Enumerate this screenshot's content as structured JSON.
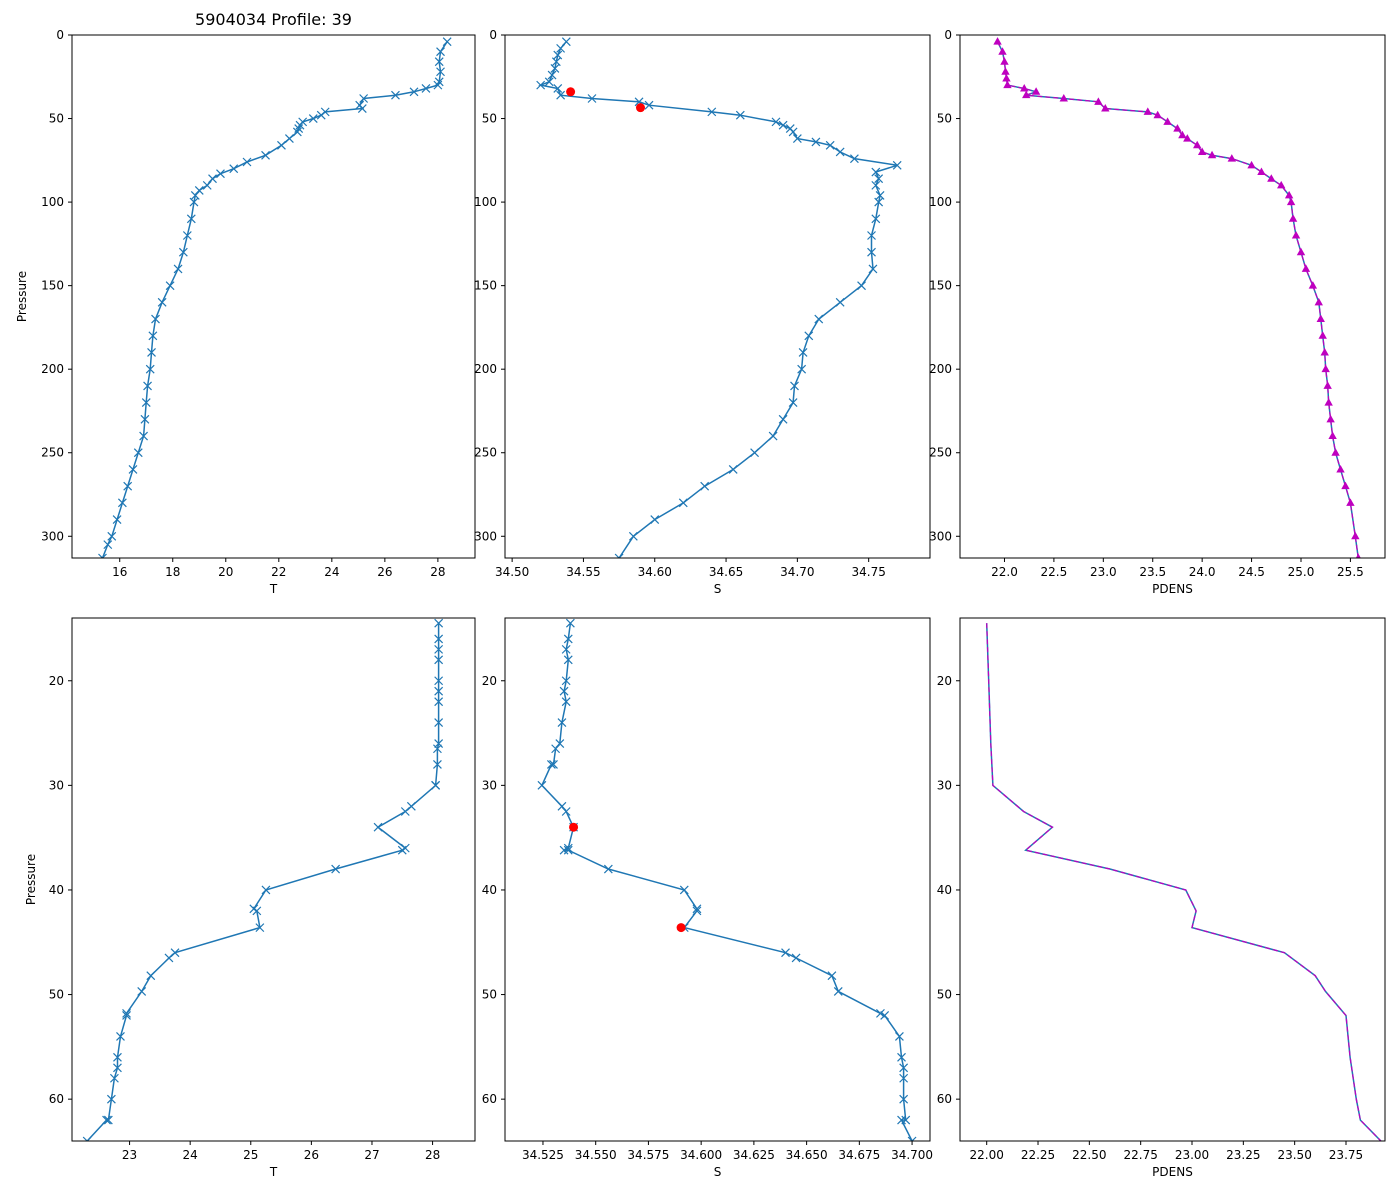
{
  "figure": {
    "title": "5904034 Profile: 39"
  },
  "colors": {
    "line": "#1f77b4",
    "density": "#bf00bf",
    "flag": "#ff0000",
    "axis": "#000000"
  },
  "chart_data": [
    {
      "type": "line",
      "panel": "top-left",
      "xlabel": "T",
      "ylabel": "Pressure",
      "xlim": [
        14.2,
        29.4
      ],
      "ylim": [
        313,
        0
      ],
      "y_inverted": true,
      "xticks": [
        16,
        18,
        20,
        22,
        24,
        26,
        28
      ],
      "yticks": [
        0,
        50,
        100,
        150,
        200,
        250,
        300
      ],
      "marker": "x",
      "series": [
        {
          "name": "T",
          "x": [
            28.35,
            28.1,
            28.05,
            28.1,
            28.05,
            28.0,
            27.55,
            27.1,
            26.4,
            25.2,
            25.05,
            25.15,
            23.75,
            23.6,
            23.3,
            22.9,
            22.8,
            22.75,
            22.7,
            22.4,
            22.1,
            21.5,
            20.8,
            20.3,
            19.8,
            19.5,
            19.3,
            19.0,
            18.85,
            18.8,
            18.7,
            18.55,
            18.4,
            18.2,
            17.9,
            17.6,
            17.35,
            17.25,
            17.2,
            17.15,
            17.05,
            17.0,
            16.95,
            16.9,
            16.7,
            16.5,
            16.3,
            16.1,
            15.9,
            15.7,
            15.55,
            15.35
          ],
          "y": [
            4,
            10,
            16,
            22,
            28,
            30,
            32,
            34,
            36,
            38,
            42,
            44,
            46,
            48,
            50,
            52,
            54,
            56,
            58,
            62,
            66,
            72,
            76,
            80,
            83,
            86,
            90,
            93,
            96,
            100,
            110,
            120,
            130,
            140,
            150,
            160,
            170,
            180,
            190,
            200,
            210,
            220,
            230,
            240,
            250,
            260,
            270,
            280,
            290,
            300,
            305,
            313
          ]
        }
      ]
    },
    {
      "type": "line",
      "panel": "top-middle",
      "xlabel": "S",
      "ylabel": "",
      "xlim": [
        34.495,
        34.793
      ],
      "ylim": [
        313,
        0
      ],
      "y_inverted": true,
      "xticks": [
        34.5,
        34.55,
        34.6,
        34.65,
        34.7,
        34.75
      ],
      "xtick_labels": [
        "34.50",
        "34.55",
        "34.60",
        "34.65",
        "34.70",
        "34.75"
      ],
      "yticks": [
        0,
        50,
        100,
        150,
        200,
        250,
        300
      ],
      "marker": "x",
      "series": [
        {
          "name": "S",
          "x": [
            34.538,
            34.534,
            34.532,
            34.531,
            34.53,
            34.528,
            34.526,
            34.52,
            34.532,
            34.534,
            34.556,
            34.589,
            34.596,
            34.64,
            34.66,
            34.685,
            34.69,
            34.695,
            34.697,
            34.7,
            34.713,
            34.723,
            34.73,
            34.74,
            34.77,
            34.755,
            34.757,
            34.755,
            34.758,
            34.757,
            34.755,
            34.752,
            34.752,
            34.753,
            34.745,
            34.73,
            34.715,
            34.708,
            34.704,
            34.703,
            34.698,
            34.697,
            34.69,
            34.683,
            34.67,
            34.655,
            34.635,
            34.62,
            34.6,
            34.585,
            34.575
          ],
          "y": [
            4,
            8,
            12,
            16,
            20,
            24,
            28,
            30,
            32,
            36,
            38,
            40,
            42,
            46,
            48,
            52,
            54,
            56,
            58,
            62,
            64,
            66,
            70,
            74,
            78,
            82,
            86,
            90,
            96,
            100,
            110,
            120,
            130,
            140,
            150,
            160,
            170,
            180,
            190,
            200,
            210,
            220,
            230,
            240,
            250,
            260,
            270,
            280,
            290,
            300,
            313
          ]
        }
      ],
      "flagged_points": {
        "x": [
          34.541,
          34.59
        ],
        "y": [
          34,
          43.5
        ]
      }
    },
    {
      "type": "line",
      "panel": "top-right",
      "xlabel": "PDENS",
      "ylabel": "",
      "xlim": [
        21.55,
        25.85
      ],
      "ylim": [
        313,
        0
      ],
      "y_inverted": true,
      "xticks": [
        22.0,
        22.5,
        23.0,
        23.5,
        24.0,
        24.5,
        25.0,
        25.5
      ],
      "xtick_labels": [
        "22.0",
        "22.5",
        "23.0",
        "23.5",
        "24.0",
        "24.5",
        "25.0",
        "25.5"
      ],
      "yticks": [
        0,
        50,
        100,
        150,
        200,
        250,
        300
      ],
      "marker": "triangle",
      "series": [
        {
          "name": "PDENS",
          "x": [
            21.93,
            21.98,
            22.0,
            22.01,
            22.02,
            22.03,
            22.2,
            22.32,
            22.22,
            22.6,
            22.95,
            23.02,
            23.45,
            23.55,
            23.65,
            23.75,
            23.8,
            23.85,
            23.95,
            24.0,
            24.1,
            24.3,
            24.5,
            24.6,
            24.7,
            24.8,
            24.88,
            24.9,
            24.92,
            24.95,
            25.0,
            25.05,
            25.12,
            25.18,
            25.2,
            25.22,
            25.24,
            25.25,
            25.27,
            25.28,
            25.3,
            25.32,
            25.35,
            25.4,
            25.45,
            25.5,
            25.55,
            25.58
          ],
          "y": [
            4,
            10,
            16,
            22,
            26,
            30,
            32,
            34,
            36,
            38,
            40,
            44,
            46,
            48,
            52,
            56,
            60,
            62,
            66,
            70,
            72,
            74,
            78,
            82,
            86,
            90,
            96,
            100,
            110,
            120,
            130,
            140,
            150,
            160,
            170,
            180,
            190,
            200,
            210,
            220,
            230,
            240,
            250,
            260,
            270,
            280,
            300,
            313
          ]
        }
      ]
    },
    {
      "type": "line",
      "panel": "bottom-left",
      "xlabel": "T",
      "ylabel": "Pressure",
      "xlim": [
        22.05,
        28.7
      ],
      "ylim": [
        64,
        14
      ],
      "y_inverted": true,
      "xticks": [
        23,
        24,
        25,
        26,
        27,
        28
      ],
      "yticks": [
        20,
        30,
        40,
        50,
        60
      ],
      "marker": "x",
      "series": [
        {
          "name": "T",
          "x": [
            28.1,
            28.1,
            28.1,
            28.1,
            28.1,
            28.1,
            28.1,
            28.1,
            28.1,
            28.08,
            28.08,
            28.05,
            28.05,
            27.65,
            27.55,
            27.1,
            27.55,
            27.5,
            26.4,
            25.25,
            25.05,
            25.1,
            25.15,
            23.75,
            23.65,
            23.35,
            23.2,
            22.95,
            22.95,
            22.85,
            22.8,
            22.8,
            22.75,
            22.7,
            22.65,
            22.62,
            22.3
          ],
          "y": [
            14.5,
            16,
            17,
            18,
            20,
            21,
            22,
            24,
            26,
            26.5,
            28,
            30,
            30,
            32,
            32.5,
            34,
            36,
            36.2,
            38,
            40,
            41.8,
            42,
            43.6,
            46,
            46.5,
            48.2,
            49.7,
            51.8,
            52,
            54,
            56,
            57,
            58,
            60,
            62,
            62,
            64
          ]
        }
      ]
    },
    {
      "type": "line",
      "panel": "bottom-middle",
      "xlabel": "S",
      "ylabel": "",
      "xlim": [
        34.507,
        34.7085
      ],
      "ylim": [
        64,
        14
      ],
      "y_inverted": true,
      "xticks": [
        34.525,
        34.55,
        34.575,
        34.6,
        34.625,
        34.65,
        34.675,
        34.7
      ],
      "xtick_labels": [
        "34.525",
        "34.550",
        "34.575",
        "34.600",
        "34.625",
        "34.650",
        "34.675",
        "34.700"
      ],
      "yticks": [
        20,
        30,
        40,
        50,
        60
      ],
      "marker": "x",
      "series": [
        {
          "name": "S",
          "x": [
            34.538,
            34.537,
            34.536,
            34.537,
            34.536,
            34.535,
            34.536,
            34.534,
            34.533,
            34.531,
            34.53,
            34.529,
            34.5245,
            34.534,
            34.536,
            34.5395,
            34.537,
            34.535,
            34.537,
            34.556,
            34.592,
            34.598,
            34.598,
            34.592,
            34.64,
            34.645,
            34.662,
            34.665,
            34.685,
            34.687,
            34.694,
            34.695,
            34.696,
            34.696,
            34.696,
            34.697,
            34.695,
            34.7
          ],
          "y": [
            14.5,
            16,
            17,
            18,
            20,
            21,
            22,
            24,
            26,
            26.5,
            28,
            28,
            30,
            32,
            32.5,
            34,
            36,
            36.2,
            36.2,
            38,
            40,
            41.8,
            42,
            43.6,
            46,
            46.5,
            48.2,
            49.7,
            51.8,
            52,
            54,
            56,
            57,
            58,
            60,
            62,
            62,
            64
          ]
        }
      ],
      "flagged_points": {
        "x": [
          34.5395,
          34.5905
        ],
        "y": [
          34,
          43.6
        ]
      }
    },
    {
      "type": "line",
      "panel": "bottom-right",
      "xlabel": "PDENS",
      "ylabel": "",
      "xlim": [
        21.87,
        23.94
      ],
      "ylim": [
        64,
        14
      ],
      "y_inverted": true,
      "xticks": [
        22.0,
        22.25,
        22.5,
        22.75,
        23.0,
        23.25,
        23.5,
        23.75
      ],
      "xtick_labels": [
        "22.00",
        "22.25",
        "22.50",
        "22.75",
        "23.00",
        "23.25",
        "23.50",
        "23.75"
      ],
      "yticks": [
        20,
        30,
        40,
        50,
        60
      ],
      "marker": "none",
      "series": [
        {
          "name": "PDENS",
          "x": [
            22.0,
            22.01,
            22.02,
            22.03,
            22.18,
            22.32,
            22.19,
            22.6,
            22.97,
            23.02,
            23.0,
            23.45,
            23.6,
            23.65,
            23.75,
            23.77,
            23.8,
            23.82,
            23.92
          ],
          "y": [
            14.5,
            20,
            26,
            30,
            32.5,
            34,
            36.2,
            38,
            40,
            42,
            43.6,
            46,
            48.2,
            49.7,
            52,
            56,
            60,
            62,
            64
          ]
        }
      ]
    }
  ]
}
